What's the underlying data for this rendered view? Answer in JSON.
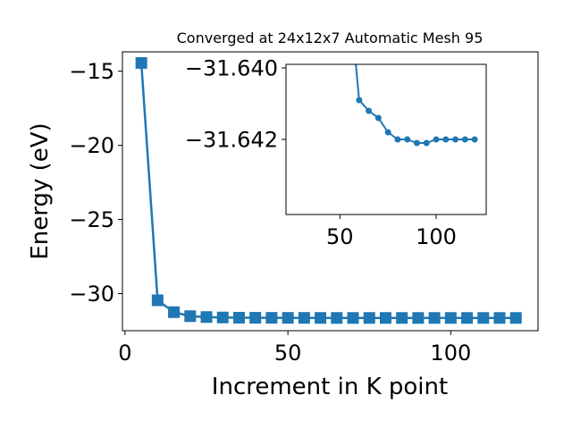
{
  "chart_data": {
    "type": "line",
    "title": "Converged at 24x12x7 Automatic Mesh 95",
    "xlabel": "Increment in K point",
    "ylabel": "Energy (eV)",
    "xlim": [
      -0.8,
      126.8
    ],
    "ylim": [
      -32.5,
      -13.7
    ],
    "xticks": [
      0,
      50,
      100
    ],
    "xtick_labels": [
      "0",
      "50",
      "100"
    ],
    "yticks": [
      -15,
      -20,
      -25,
      -30
    ],
    "ytick_labels": [
      "−15",
      "−20",
      "−25",
      "−30"
    ],
    "grid": false,
    "marker": "square",
    "color": "#1f77b4",
    "series": [
      {
        "x": [
          5,
          10,
          15,
          20,
          25,
          30,
          35,
          40,
          45,
          50,
          55,
          60,
          65,
          70,
          75,
          80,
          85,
          90,
          95,
          100,
          105,
          110,
          115,
          120
        ],
        "y": [
          -14.45,
          -30.45,
          -31.25,
          -31.52,
          -31.58,
          -31.61,
          -31.625,
          -31.63,
          -31.634,
          -31.636,
          -31.638,
          -31.6409,
          -31.6412,
          -31.6414,
          -31.6418,
          -31.642,
          -31.642,
          -31.6421,
          -31.6421,
          -31.642,
          -31.642,
          -31.642,
          -31.642,
          -31.642
        ]
      }
    ],
    "inset": {
      "type": "line",
      "marker": "circle",
      "xlim": [
        22,
        126
      ],
      "ylim": [
        -31.6441,
        -31.6399
      ],
      "xticks": [
        50,
        100
      ],
      "xtick_labels": [
        "50",
        "100"
      ],
      "yticks": [
        -31.642,
        -31.64
      ],
      "ytick_labels": [
        "−31.642",
        "−31.640"
      ],
      "series": [
        {
          "x": [
            55,
            60,
            65,
            70,
            75,
            80,
            85,
            90,
            95,
            100,
            105,
            110,
            115,
            120
          ],
          "y": [
            -31.638,
            -31.6409,
            -31.6412,
            -31.6414,
            -31.6418,
            -31.642,
            -31.642,
            -31.6421,
            -31.6421,
            -31.642,
            -31.642,
            -31.642,
            -31.642,
            -31.642
          ]
        }
      ]
    }
  }
}
